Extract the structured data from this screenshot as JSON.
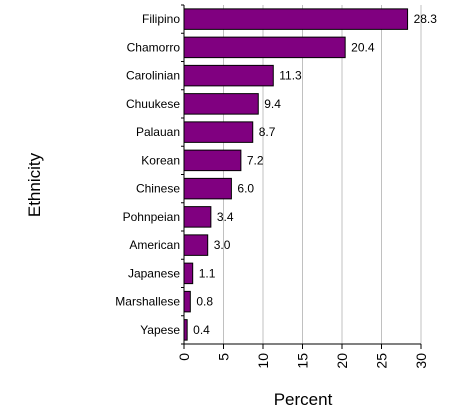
{
  "chart_data": {
    "type": "bar",
    "orientation": "horizontal",
    "categories": [
      "Filipino",
      "Chamorro",
      "Carolinian",
      "Chuukese",
      "Palauan",
      "Korean",
      "Chinese",
      "Pohnpeian",
      "American",
      "Japanese",
      "Marshallese",
      "Yapese"
    ],
    "values": [
      28.3,
      20.4,
      11.3,
      9.4,
      8.7,
      7.2,
      6.0,
      3.4,
      3.0,
      1.1,
      0.8,
      0.4
    ],
    "value_labels": [
      "28.3",
      "20.4",
      "11.3",
      "9.4",
      "8.7",
      "7.2",
      "6.0",
      "3.4",
      "3.0",
      "1.1",
      "0.8",
      "0.4"
    ],
    "xlabel": "Percent",
    "ylabel": "Ethnicity",
    "xlim": [
      0,
      30
    ],
    "xticks": [
      0,
      5,
      10,
      15,
      20,
      25,
      30
    ],
    "grid": true,
    "legend": "none",
    "bar_color": "#800080",
    "bar_edge_color": "#000000",
    "grid_color": "#c0c0c0"
  }
}
